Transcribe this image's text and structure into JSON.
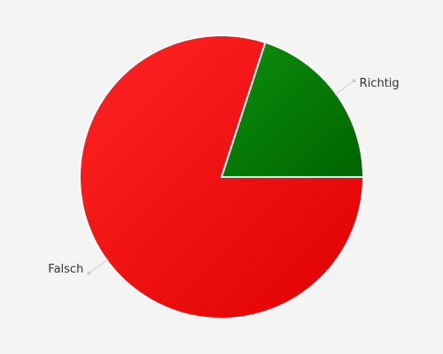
{
  "chart_data": {
    "type": "pie",
    "categories": [
      "Richtig",
      "Falsch"
    ],
    "values": [
      20,
      80
    ],
    "colors": [
      "#057a05",
      "#f01010"
    ]
  }
}
